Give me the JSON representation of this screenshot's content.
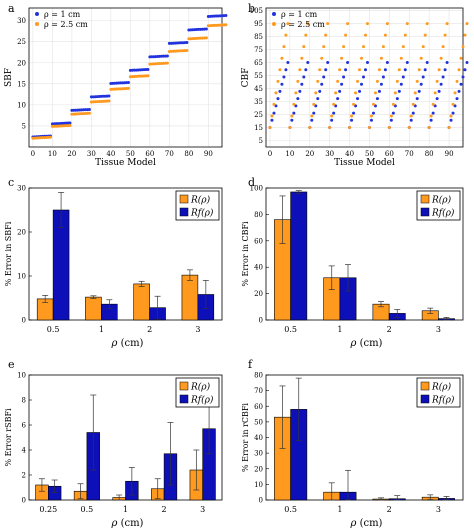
{
  "colors": {
    "blue": "#2233dd",
    "orange": "#ff9a1f",
    "bar_blue": "#0d10b8",
    "bar_orange": "#ff9a1f",
    "bar_edge": "#000000"
  },
  "chart_data": [
    {
      "panel": "a",
      "type": "scatter",
      "xlabel": "Tissue Model",
      "ylabel": "SBF",
      "xlim": [
        -2,
        97
      ],
      "ylim": [
        0,
        33
      ],
      "xticks": [
        0,
        10,
        20,
        30,
        40,
        50,
        60,
        70,
        80,
        90
      ],
      "yticks": [
        5,
        10,
        15,
        20,
        25,
        30
      ],
      "grid": true,
      "legend": "top-left",
      "series": [
        {
          "name": "ρ = 1 cm",
          "color": "#2233dd",
          "values_per_step": [
            2.5,
            5.6,
            8.8,
            12.0,
            15.2,
            18.3,
            21.5,
            24.7,
            27.9,
            31.1
          ]
        },
        {
          "name": "ρ = 2.5 cm",
          "color": "#ff9a1f",
          "values_per_step": [
            2.2,
            5.0,
            7.9,
            10.8,
            13.8,
            16.8,
            19.8,
            22.8,
            25.8,
            28.9
          ]
        }
      ]
    },
    {
      "panel": "b",
      "type": "scatter",
      "xlabel": "Tissue Model",
      "ylabel": "CBF",
      "xlim": [
        -2,
        97
      ],
      "ylim": [
        0,
        107
      ],
      "xticks": [
        0,
        10,
        20,
        30,
        40,
        50,
        60,
        70,
        80,
        90
      ],
      "yticks": [
        5,
        15,
        25,
        35,
        45,
        55,
        65,
        75,
        85,
        95,
        105
      ],
      "grid": true,
      "legend": "top-left",
      "series": [
        {
          "name": "ρ = 1 cm",
          "color": "#2233dd",
          "start": 15,
          "end": 65
        },
        {
          "name": "ρ = 2.5 cm",
          "color": "#ff9a1f",
          "start": 15,
          "end": 95
        }
      ]
    },
    {
      "panel": "c",
      "type": "bar",
      "xlabel": "ρ (cm)",
      "ylabel": "% Error in SBFi",
      "categories": [
        "0.5",
        "1",
        "2",
        "3"
      ],
      "ylim": [
        0,
        30
      ],
      "yticks": [
        0,
        10,
        20,
        30
      ],
      "legend": "top-right",
      "series": [
        {
          "name": "R(ρ)",
          "color": "#ff9a1f",
          "values": [
            4.8,
            5.2,
            8.2,
            10.2
          ],
          "errors": [
            0.8,
            0.3,
            0.6,
            1.2
          ]
        },
        {
          "name": "Rf(ρ)",
          "color": "#0d10b8",
          "values": [
            25.0,
            3.6,
            2.8,
            5.8
          ],
          "errors": [
            4.0,
            1.0,
            2.6,
            3.2
          ]
        }
      ]
    },
    {
      "panel": "d",
      "type": "bar",
      "xlabel": "ρ (cm)",
      "ylabel": "% Error in CBFi",
      "categories": [
        "0.5",
        "1",
        "2",
        "3"
      ],
      "ylim": [
        0,
        100
      ],
      "yticks": [
        0,
        20,
        40,
        60,
        80,
        100
      ],
      "legend": "top-right",
      "series": [
        {
          "name": "R(ρ)",
          "color": "#ff9a1f",
          "values": [
            76,
            32,
            12,
            7
          ],
          "errors": [
            18,
            9,
            2,
            2
          ]
        },
        {
          "name": "Rf(ρ)",
          "color": "#0d10b8",
          "values": [
            97,
            32,
            5,
            1
          ],
          "errors": [
            1,
            10,
            3,
            1
          ]
        }
      ]
    },
    {
      "panel": "e",
      "type": "bar",
      "xlabel": "ρ (cm)",
      "ylabel": "% Error rSBFi",
      "categories": [
        "0.25",
        "0.5",
        "1",
        "2",
        "3"
      ],
      "ylim": [
        0,
        10
      ],
      "yticks": [
        0,
        2,
        4,
        6,
        8,
        10
      ],
      "legend": "top-right",
      "series": [
        {
          "name": "R(ρ)",
          "color": "#ff9a1f",
          "values": [
            1.2,
            0.7,
            0.2,
            0.9,
            2.4
          ],
          "errors": [
            0.5,
            0.6,
            0.2,
            0.8,
            1.6
          ]
        },
        {
          "name": "Rf(ρ)",
          "color": "#0d10b8",
          "values": [
            1.1,
            5.4,
            1.5,
            3.7,
            5.7
          ],
          "errors": [
            0.5,
            3.0,
            1.1,
            2.5,
            2.0
          ]
        }
      ]
    },
    {
      "panel": "f",
      "type": "bar",
      "xlabel": "ρ (cm)",
      "ylabel": "% Error in rCBFi",
      "categories": [
        "0.5",
        "1",
        "2",
        "3"
      ],
      "ylim": [
        0,
        80
      ],
      "yticks": [
        0,
        10,
        20,
        30,
        40,
        50,
        60,
        70,
        80
      ],
      "legend": "top-right",
      "series": [
        {
          "name": "R(ρ)",
          "color": "#ff9a1f",
          "values": [
            53,
            5,
            0.6,
            1.8
          ],
          "errors": [
            20,
            6,
            0.8,
            1.5
          ]
        },
        {
          "name": "Rf(ρ)",
          "color": "#0d10b8",
          "values": [
            58,
            5,
            0.8,
            1.0
          ],
          "errors": [
            20,
            14,
            2.0,
            1.3
          ]
        }
      ]
    }
  ]
}
